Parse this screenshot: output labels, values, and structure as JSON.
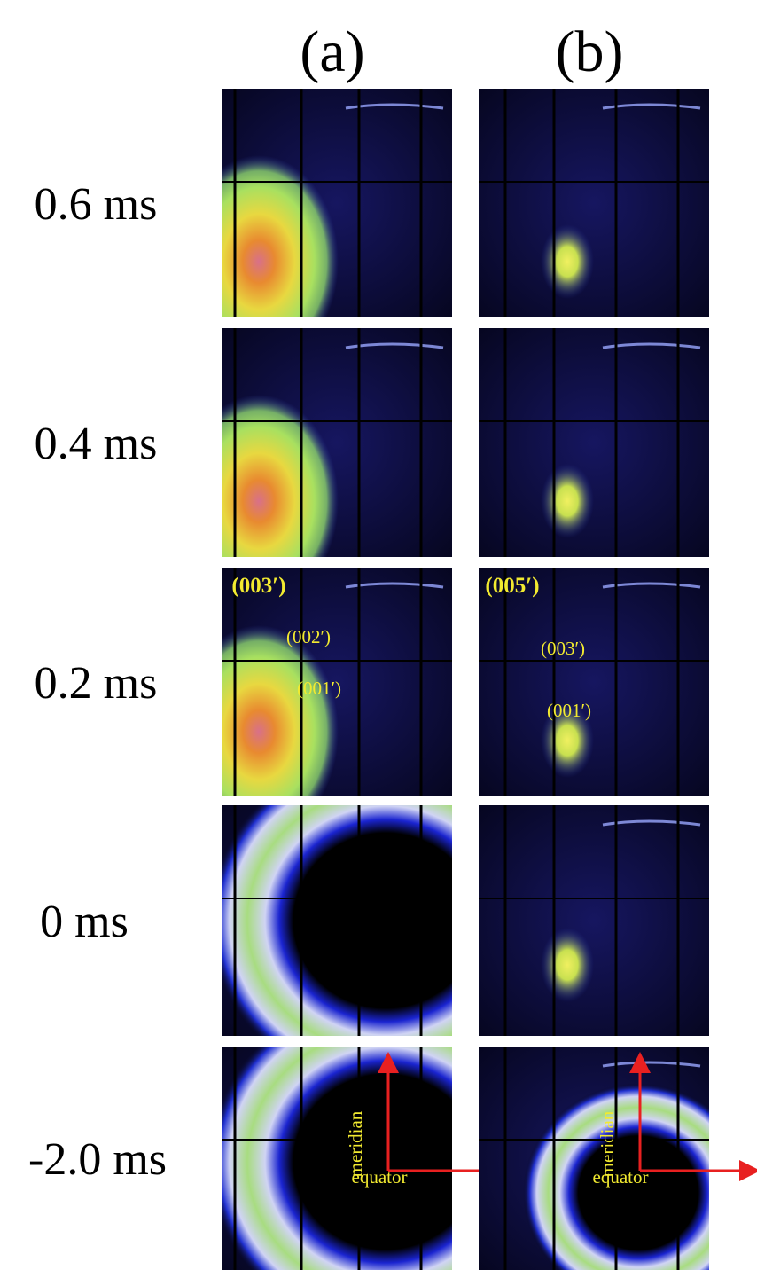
{
  "columns": [
    "(a)",
    "(b)"
  ],
  "rows": [
    {
      "label": "0.6 ms"
    },
    {
      "label": "0.4 ms"
    },
    {
      "label": "0.2 ms",
      "a": [
        "(003′)",
        "(002′)",
        "(001′)"
      ],
      "b": [
        "(005′)",
        "(003′)",
        "(001′)"
      ]
    },
    {
      "label": "0 ms"
    },
    {
      "label": "-2.0 ms",
      "a": [
        "meridian",
        "equator"
      ],
      "b": [
        "meridian",
        "equator"
      ]
    }
  ]
}
